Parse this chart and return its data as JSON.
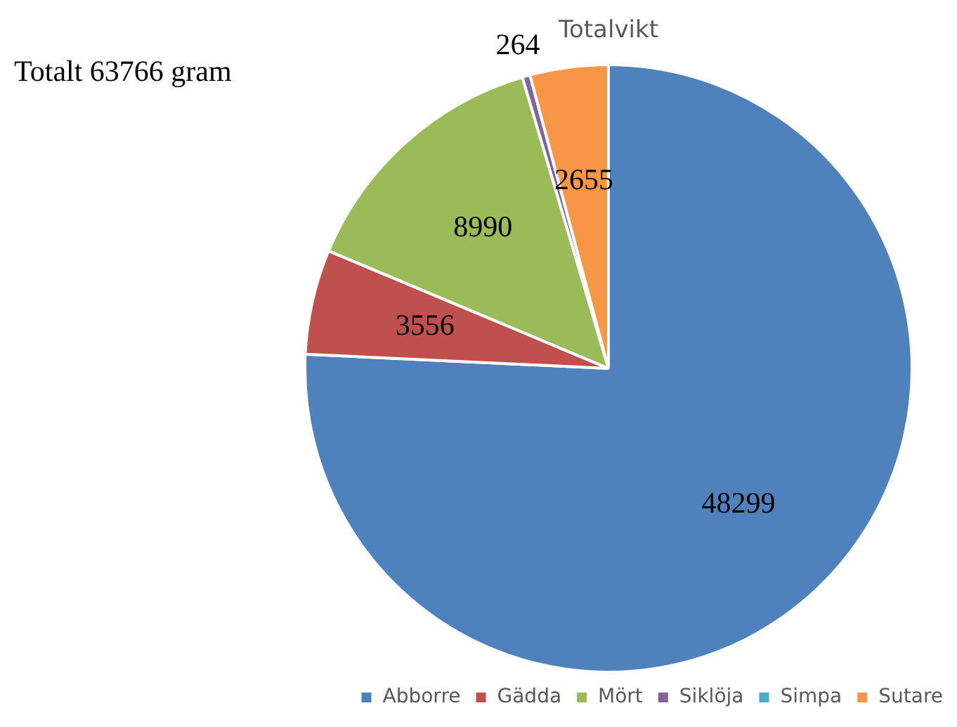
{
  "chart_data": {
    "type": "pie",
    "title": "Totalvikt",
    "annotations": [
      "Totalt 63766 gram"
    ],
    "categories": [
      "Abborre",
      "Gädda",
      "Mört",
      "Siklöja",
      "Simpa",
      "Sutare"
    ],
    "values": [
      48299,
      3556,
      8990,
      264,
      null,
      2655
    ],
    "value_labels": [
      "48299",
      "3556",
      "8990",
      "264",
      null,
      "2655"
    ],
    "colors": [
      "#4f81bd",
      "#c0504d",
      "#9bbb59",
      "#8064a2",
      "#4bacc6",
      "#f79646"
    ],
    "legend": "bottom right"
  }
}
